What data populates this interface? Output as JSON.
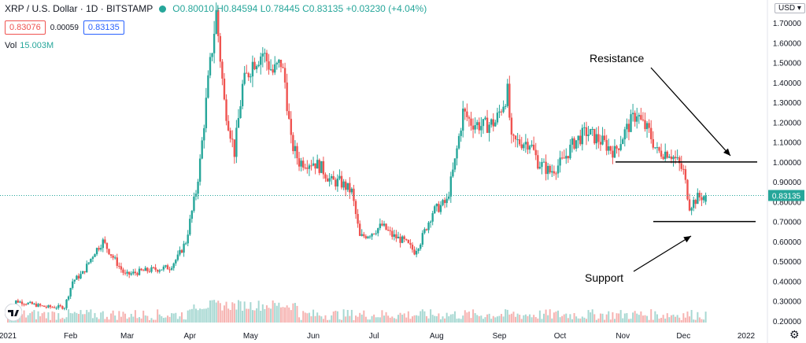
{
  "header": {
    "title": "XRP / U.S. Dollar · 1D · BITSTAMP",
    "ohlc": "O0.80010 H0.84594 L0.78445 C0.83135 +0.03230 (+4.04%)",
    "bid": "0.83076",
    "spread": "0.00059",
    "ask": "0.83135",
    "volume_label": "Vol",
    "volume_value": "15.003M",
    "currency": "USD"
  },
  "colors": {
    "up": "#26a69a",
    "down": "#ef5350",
    "volume_up": "#a7d8d2",
    "volume_down": "#f6b3b1",
    "price_badge": "#26a69a",
    "annotation": "#000000"
  },
  "icons": {
    "currency_menu": "chevron-down-icon",
    "settings": "gear-icon",
    "logo": "tradingview-logo-icon"
  },
  "annotations": {
    "resistance": "Resistance",
    "support": "Support"
  },
  "chart_data": {
    "type": "candlestick",
    "title": "XRP / U.S. Dollar · 1D · BITSTAMP",
    "x_tick_labels": [
      "2021",
      "Feb",
      "Mar",
      "Apr",
      "May",
      "Jun",
      "Jul",
      "Aug",
      "Sep",
      "Oct",
      "Nov",
      "Dec",
      "2022"
    ],
    "y_tick_labels": [
      "0.20000",
      "0.30000",
      "0.40000",
      "0.50000",
      "0.60000",
      "0.70000",
      "0.80000",
      "0.90000",
      "1.00000",
      "1.10000",
      "1.20000",
      "1.30000",
      "1.40000",
      "1.50000",
      "1.60000",
      "1.70000"
    ],
    "ylim": [
      0.18,
      1.78
    ],
    "last_price": 0.83135,
    "last_price_label": "0.83135",
    "resistance_level": 1.0,
    "support_level": 0.7,
    "price_path": [
      [
        "2021-01-01",
        0.22
      ],
      [
        "2021-01-05",
        0.3
      ],
      [
        "2021-01-10",
        0.29
      ],
      [
        "2021-01-20",
        0.27
      ],
      [
        "2021-01-29",
        0.27
      ],
      [
        "2021-02-02",
        0.4
      ],
      [
        "2021-02-07",
        0.44
      ],
      [
        "2021-02-13",
        0.55
      ],
      [
        "2021-02-17",
        0.6
      ],
      [
        "2021-02-22",
        0.52
      ],
      [
        "2021-02-28",
        0.43
      ],
      [
        "2021-03-08",
        0.45
      ],
      [
        "2021-03-15",
        0.46
      ],
      [
        "2021-03-22",
        0.47
      ],
      [
        "2021-03-26",
        0.52
      ],
      [
        "2021-03-30",
        0.6
      ],
      [
        "2021-04-04",
        0.85
      ],
      [
        "2021-04-06",
        1.0
      ],
      [
        "2021-04-10",
        1.4
      ],
      [
        "2021-04-14",
        1.75
      ],
      [
        "2021-04-18",
        1.3
      ],
      [
        "2021-04-23",
        1.05
      ],
      [
        "2021-04-27",
        1.38
      ],
      [
        "2021-05-02",
        1.5
      ],
      [
        "2021-05-07",
        1.55
      ],
      [
        "2021-05-12",
        1.45
      ],
      [
        "2021-05-16",
        1.5
      ],
      [
        "2021-05-18",
        1.4
      ],
      [
        "2021-05-21",
        1.1
      ],
      [
        "2021-05-25",
        1.0
      ],
      [
        "2021-06-01",
        1.0
      ],
      [
        "2021-06-05",
        0.97
      ],
      [
        "2021-06-10",
        0.9
      ],
      [
        "2021-06-14",
        0.9
      ],
      [
        "2021-06-20",
        0.85
      ],
      [
        "2021-06-24",
        0.62
      ],
      [
        "2021-06-29",
        0.64
      ],
      [
        "2021-07-05",
        0.68
      ],
      [
        "2021-07-10",
        0.63
      ],
      [
        "2021-07-16",
        0.6
      ],
      [
        "2021-07-21",
        0.55
      ],
      [
        "2021-07-24",
        0.6
      ],
      [
        "2021-07-30",
        0.75
      ],
      [
        "2021-08-06",
        0.8
      ],
      [
        "2021-08-10",
        1.0
      ],
      [
        "2021-08-14",
        1.25
      ],
      [
        "2021-08-18",
        1.2
      ],
      [
        "2021-08-24",
        1.18
      ],
      [
        "2021-08-30",
        1.2
      ],
      [
        "2021-09-05",
        1.35
      ],
      [
        "2021-09-07",
        1.1
      ],
      [
        "2021-09-12",
        1.1
      ],
      [
        "2021-09-16",
        1.1
      ],
      [
        "2021-09-20",
        1.0
      ],
      [
        "2021-09-26",
        0.95
      ],
      [
        "2021-10-02",
        1.0
      ],
      [
        "2021-10-08",
        1.1
      ],
      [
        "2021-10-14",
        1.15
      ],
      [
        "2021-10-22",
        1.1
      ],
      [
        "2021-10-28",
        1.05
      ],
      [
        "2021-11-02",
        1.15
      ],
      [
        "2021-11-08",
        1.25
      ],
      [
        "2021-11-10",
        1.2
      ],
      [
        "2021-11-14",
        1.15
      ],
      [
        "2021-11-18",
        1.05
      ],
      [
        "2021-11-24",
        1.05
      ],
      [
        "2021-11-28",
        1.0
      ],
      [
        "2021-12-01",
        0.95
      ],
      [
        "2021-12-04",
        0.78
      ],
      [
        "2021-12-08",
        0.82
      ],
      [
        "2021-12-12",
        0.83135
      ]
    ]
  }
}
